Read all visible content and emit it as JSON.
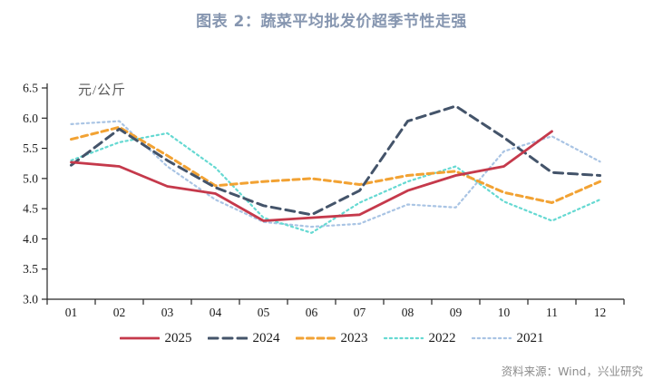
{
  "title": "图表 2：蔬菜平均批发价超季节性走强",
  "source": "资料来源：Wind，兴业研究",
  "chart_data": {
    "type": "line",
    "title": "图表 2：蔬菜平均批发价超季节性走强",
    "ylabel": "元/公斤",
    "xlabel": "",
    "ylim": [
      3.0,
      6.5
    ],
    "ytick_step": 0.5,
    "yticks": [
      "3.0",
      "3.5",
      "4.0",
      "4.5",
      "5.0",
      "5.5",
      "6.0",
      "6.5"
    ],
    "grid": false,
    "legend_position": "bottom",
    "categories": [
      "01",
      "02",
      "03",
      "04",
      "05",
      "06",
      "07",
      "08",
      "09",
      "10",
      "11",
      "12"
    ],
    "series": [
      {
        "name": "2025",
        "color": "#c5394b",
        "style": "solid",
        "values": [
          5.27,
          5.2,
          4.87,
          4.75,
          4.3,
          4.35,
          4.4,
          4.8,
          5.05,
          5.2,
          5.78,
          null
        ]
      },
      {
        "name": "2024",
        "color": "#44546a",
        "style": "dash-long",
        "values": [
          5.22,
          5.82,
          5.3,
          4.85,
          4.55,
          4.4,
          4.8,
          5.95,
          6.2,
          5.68,
          5.1,
          5.05
        ]
      },
      {
        "name": "2023",
        "color": "#f2a233",
        "style": "dash",
        "values": [
          5.65,
          5.85,
          5.38,
          4.88,
          4.95,
          5.0,
          4.9,
          5.05,
          5.12,
          4.77,
          4.6,
          4.95
        ]
      },
      {
        "name": "2022",
        "color": "#66d9d2",
        "style": "dot",
        "values": [
          5.3,
          5.6,
          5.75,
          5.18,
          4.35,
          4.1,
          4.6,
          4.95,
          5.2,
          4.62,
          4.3,
          4.65
        ]
      },
      {
        "name": "2021",
        "color": "#a9c4e4",
        "style": "dot",
        "values": [
          5.9,
          5.95,
          5.2,
          4.65,
          4.28,
          4.2,
          4.25,
          4.57,
          4.52,
          5.45,
          5.7,
          5.28
        ]
      }
    ]
  }
}
